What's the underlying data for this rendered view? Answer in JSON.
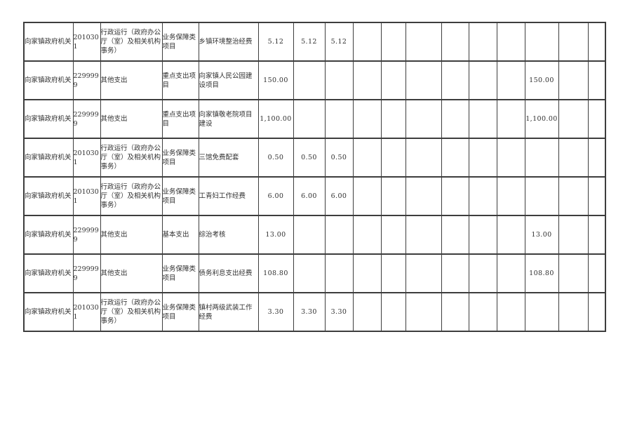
{
  "document": {
    "description": "budget expenditure table page (continuation, no header row visible)",
    "unit_name": "向家镇政府机关",
    "line_color": "#3d3d3d",
    "text_color": "#303030",
    "background_color": "#ffffff"
  },
  "table": {
    "column_count": 17,
    "rows": [
      [
        "向家镇政府机关",
        "2010301",
        "行政运行（政府办公厅（室）及相关机构事务）",
        "业务保障类项目",
        "乡镇环境整治经费",
        "5.12",
        "5.12",
        "5.12",
        "",
        "",
        "",
        "",
        "",
        "",
        "",
        "",
        ""
      ],
      [
        "向家镇政府机关",
        "2299999",
        "其他支出",
        "重点支出项目",
        "向家镇人民公园建设项目",
        "150.00",
        "",
        "",
        "",
        "",
        "",
        "",
        "",
        "",
        "150.00",
        "",
        ""
      ],
      [
        "向家镇政府机关",
        "2299999",
        "其他支出",
        "重点支出项目",
        "向家镇敬老院项目建设",
        "1,100.00",
        "",
        "",
        "",
        "",
        "",
        "",
        "",
        "",
        "1,100.00",
        "",
        ""
      ],
      [
        "向家镇政府机关",
        "2010301",
        "行政运行（政府办公厅（室）及相关机构事务）",
        "业务保障类项目",
        "三馆免费配套",
        "0.50",
        "0.50",
        "0.50",
        "",
        "",
        "",
        "",
        "",
        "",
        "",
        "",
        ""
      ],
      [
        "向家镇政府机关",
        "2010301",
        "行政运行（政府办公厅（室）及相关机构事务）",
        "业务保障类项目",
        "工青妇工作经费",
        "6.00",
        "6.00",
        "6.00",
        "",
        "",
        "",
        "",
        "",
        "",
        "",
        "",
        ""
      ],
      [
        "向家镇政府机关",
        "2299999",
        "其他支出",
        "基本支出",
        "综治考核",
        "13.00",
        "",
        "",
        "",
        "",
        "",
        "",
        "",
        "",
        "13.00",
        "",
        ""
      ],
      [
        "向家镇政府机关",
        "2299999",
        "其他支出",
        "业务保障类项目",
        "债务利息支出经费",
        "108.80",
        "",
        "",
        "",
        "",
        "",
        "",
        "",
        "",
        "108.80",
        "",
        ""
      ],
      [
        "向家镇政府机关",
        "2010301",
        "行政运行（政府办公厅（室）及相关机构事务）",
        "业务保障类项目",
        "镇村两级武装工作经费",
        "3.30",
        "3.30",
        "3.30",
        "",
        "",
        "",
        "",
        "",
        "",
        "",
        "",
        ""
      ]
    ]
  }
}
